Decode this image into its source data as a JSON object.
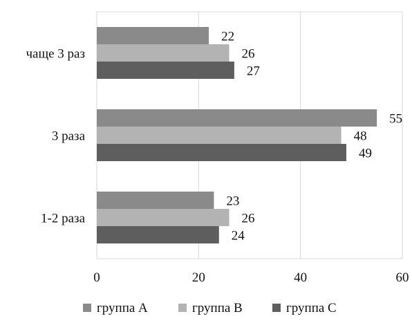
{
  "chart_data": {
    "type": "bar",
    "orientation": "horizontal",
    "title": "",
    "xlabel": "",
    "ylabel": "",
    "categories": [
      "чаще 3 раз",
      "3 раза",
      "1-2 раза"
    ],
    "series": [
      {
        "name": "группа А",
        "values": [
          22,
          55,
          23
        ],
        "color": "#8a8a8a"
      },
      {
        "name": "группа В",
        "values": [
          26,
          48,
          26
        ],
        "color": "#b3b3b3"
      },
      {
        "name": "группа С",
        "values": [
          27,
          49,
          24
        ],
        "color": "#5e5e5e"
      }
    ],
    "xlim": [
      0,
      60
    ],
    "xticks": [
      "0",
      "20",
      "40",
      "60"
    ],
    "grid": true,
    "legend_position": "bottom",
    "data_labels": true
  }
}
